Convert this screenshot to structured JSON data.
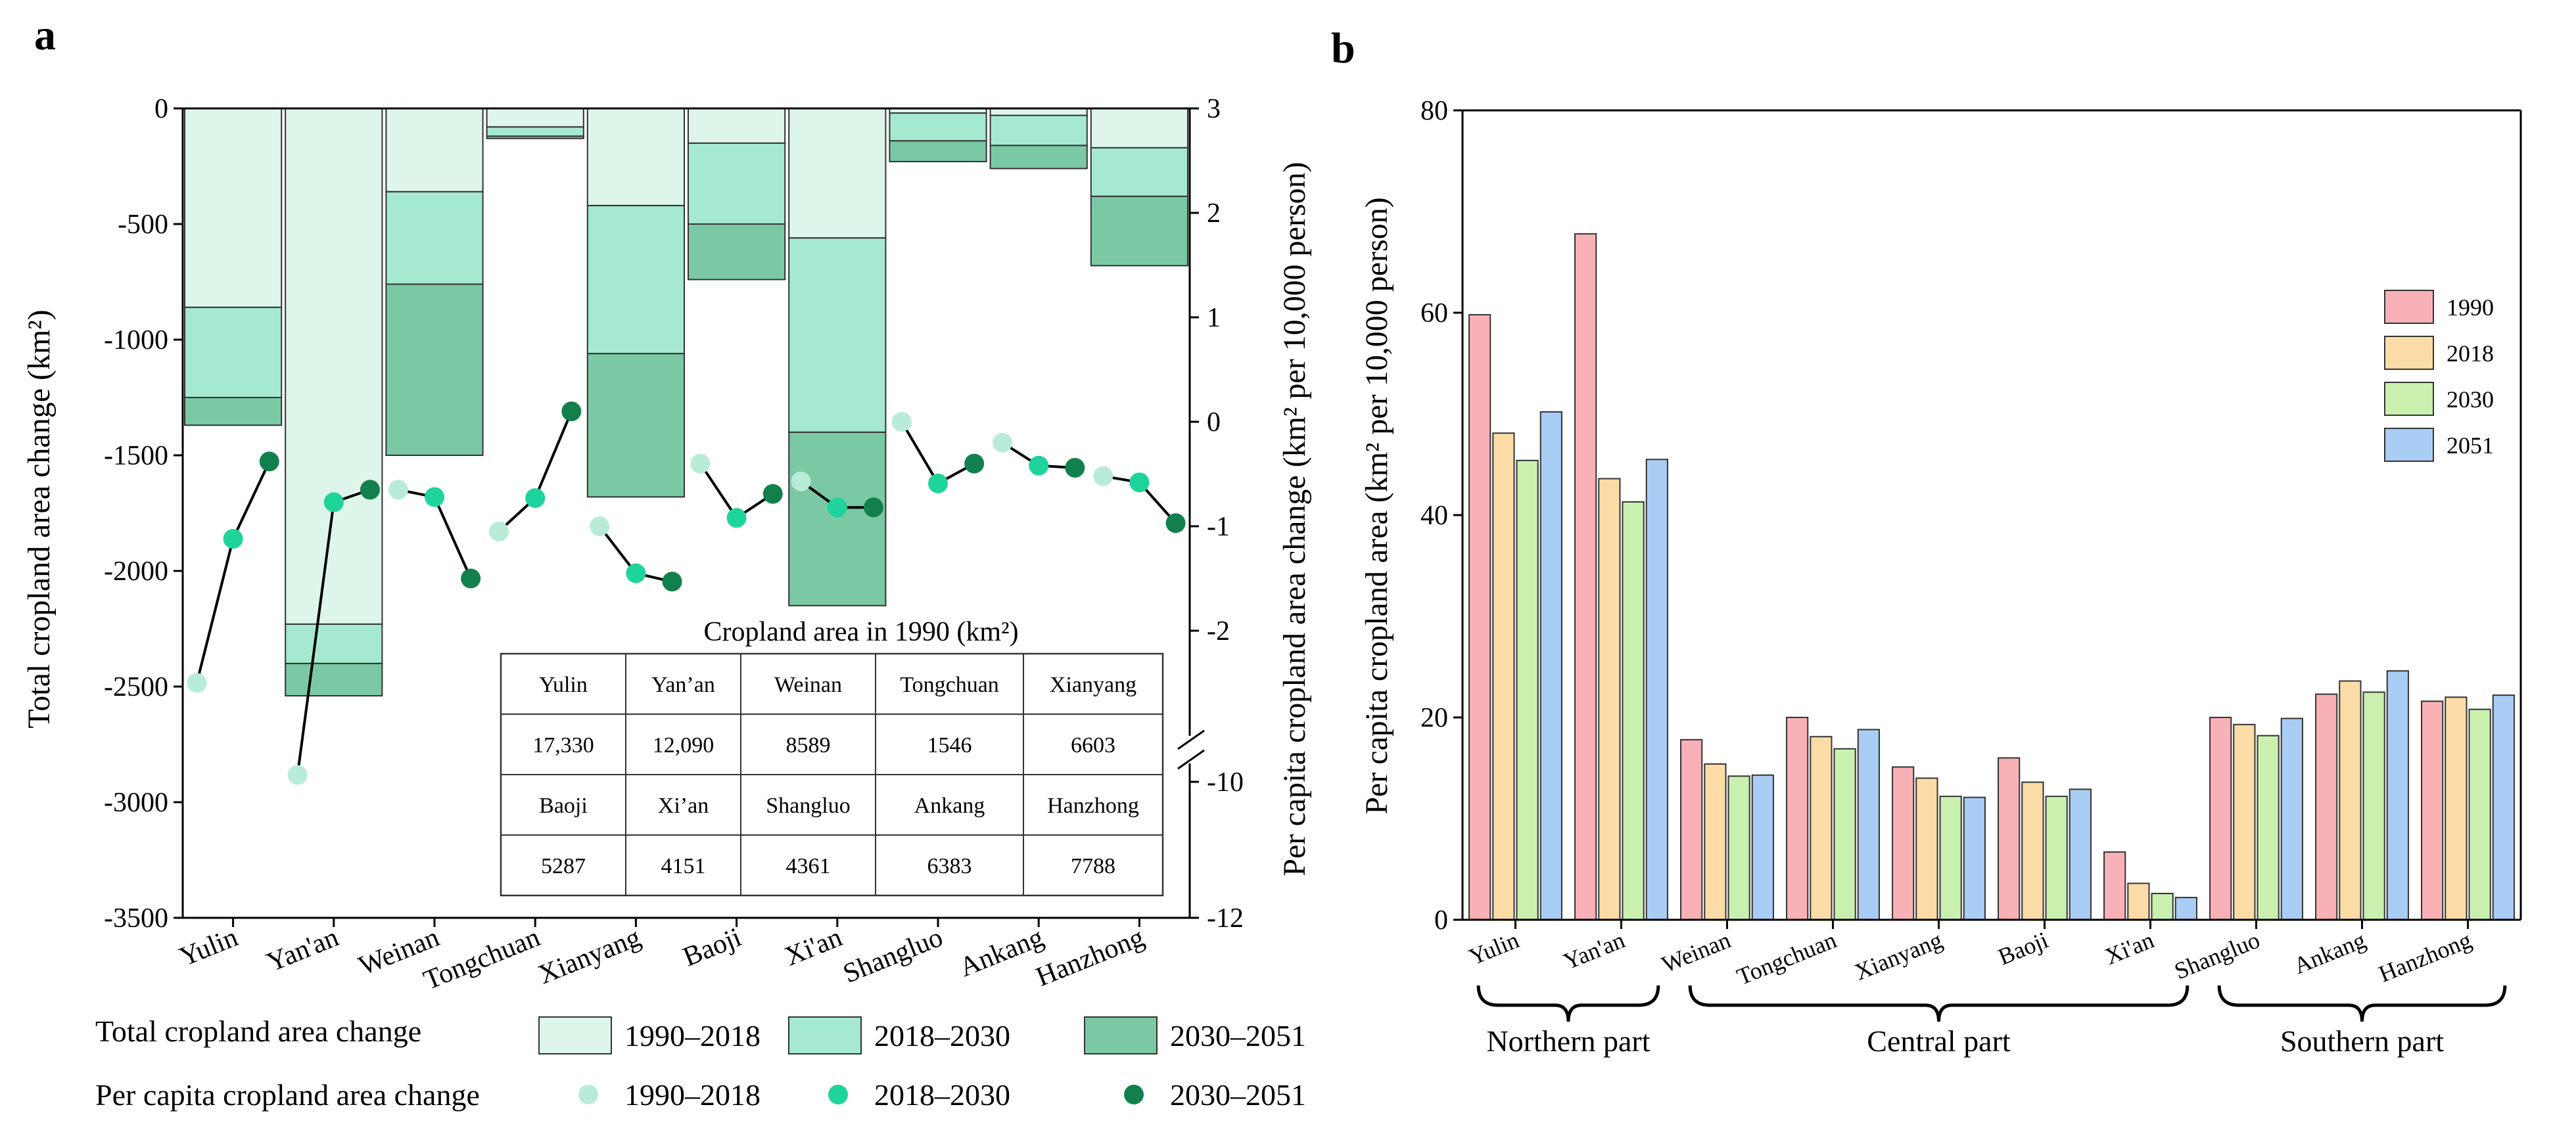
{
  "panel_labels": [
    "a",
    "b"
  ],
  "chart_data": [
    {
      "panel": "a",
      "type": "bar",
      "stacking": "cumulative-negative",
      "title": "",
      "xlabel": "",
      "ylabel": "Total cropland area change (km²)",
      "y2label": "Per capita cropland area change (km² per 10,000 person)",
      "categories": [
        "Yulin",
        "Yan'an",
        "Weinan",
        "Tongchuan",
        "Xianyang",
        "Baoji",
        "Xi'an",
        "Shangluo",
        "Ankang",
        "Hanzhong"
      ],
      "ylim": [
        -3500,
        0
      ],
      "yticks": [
        0,
        -500,
        -1000,
        -1500,
        -2000,
        -2500,
        -3000,
        -3500
      ],
      "y2_ticks_upper": [
        3,
        2,
        1,
        0,
        -1,
        -2
      ],
      "y2_ticks_lower": [
        -10,
        -12
      ],
      "y2_break_between": [
        -2,
        -10
      ],
      "bar_series": [
        {
          "name": "1990–2018",
          "color": "#def6ea",
          "values": [
            -860,
            -2230,
            -360,
            -80,
            -420,
            -150,
            -560,
            -20,
            -30,
            -170
          ]
        },
        {
          "name": "2018–2030",
          "color": "#a5ead0",
          "values": [
            -1250,
            -2400,
            -760,
            -120,
            -1060,
            -500,
            -1400,
            -140,
            -160,
            -380
          ]
        },
        {
          "name": "2030–2051",
          "color": "#7bc8a5",
          "values": [
            -1370,
            -2540,
            -1500,
            -130,
            -1680,
            -740,
            -2150,
            -230,
            -260,
            -680
          ]
        }
      ],
      "dot_series": [
        {
          "name": "1990–2018",
          "color": "#b8ecd6",
          "values": [
            -2.5,
            -9.9,
            -0.65,
            -1.05,
            -1.0,
            -0.4,
            -0.57,
            0.0,
            -0.2,
            -0.52
          ]
        },
        {
          "name": "2018–2030",
          "color": "#1fd39c",
          "values": [
            -1.12,
            -0.77,
            -0.72,
            -0.73,
            -1.45,
            -0.92,
            -0.82,
            -0.59,
            -0.42,
            -0.58
          ]
        },
        {
          "name": "2030–2051",
          "color": "#12804d",
          "values": [
            -0.38,
            -0.65,
            -1.5,
            0.1,
            -1.53,
            -0.69,
            -0.82,
            -0.4,
            -0.44,
            -0.97
          ]
        }
      ],
      "legend": {
        "bars_label": "Total cropland area change",
        "dots_label": "Per capita cropland area change",
        "entries": [
          "1990–2018",
          "2018–2030",
          "2030–2051"
        ]
      },
      "inset_table": {
        "title": "Cropland area in 1990 (km²)",
        "rows": [
          [
            "Yulin",
            "Yan’an",
            "Weinan",
            "Tongchuan",
            "Xianyang"
          ],
          [
            "17,330",
            "12,090",
            "8589",
            "1546",
            "6603"
          ],
          [
            "Baoji",
            "Xi’an",
            "Shangluo",
            "Ankang",
            "Hanzhong"
          ],
          [
            "5287",
            "4151",
            "4361",
            "6383",
            "7788"
          ]
        ]
      }
    },
    {
      "panel": "b",
      "type": "bar",
      "title": "",
      "xlabel": "",
      "ylabel": "Per capita cropland area (km² per 10,000 person)",
      "categories": [
        "Yulin",
        "Yan'an",
        "Weinan",
        "Tongchuan",
        "Xianyang",
        "Baoji",
        "Xi'an",
        "Shangluo",
        "Ankang",
        "Hanzhong"
      ],
      "ylim": [
        0,
        80
      ],
      "yticks": [
        0,
        20,
        40,
        60,
        80
      ],
      "legend_position": "top-right",
      "series": [
        {
          "name": "1990",
          "color": "#f8b1b6",
          "values": [
            59.8,
            67.8,
            17.8,
            20.0,
            15.1,
            16.0,
            6.7,
            20.0,
            22.3,
            21.6
          ]
        },
        {
          "name": "2018",
          "color": "#fbdca6",
          "values": [
            48.1,
            43.6,
            15.4,
            18.1,
            14.0,
            13.6,
            3.6,
            19.3,
            23.6,
            22.0
          ]
        },
        {
          "name": "2030",
          "color": "#caf0b0",
          "values": [
            45.4,
            41.3,
            14.2,
            16.9,
            12.2,
            12.2,
            2.6,
            18.2,
            22.5,
            20.8
          ]
        },
        {
          "name": "2051",
          "color": "#a9cdf4",
          "values": [
            50.2,
            45.5,
            14.3,
            18.8,
            12.1,
            12.9,
            2.2,
            19.9,
            24.6,
            22.2
          ]
        }
      ],
      "groups": [
        {
          "label": "Northern part",
          "from": 0,
          "to": 1
        },
        {
          "label": "Central part",
          "from": 2,
          "to": 6
        },
        {
          "label": "Southern part",
          "from": 7,
          "to": 9
        }
      ]
    }
  ]
}
